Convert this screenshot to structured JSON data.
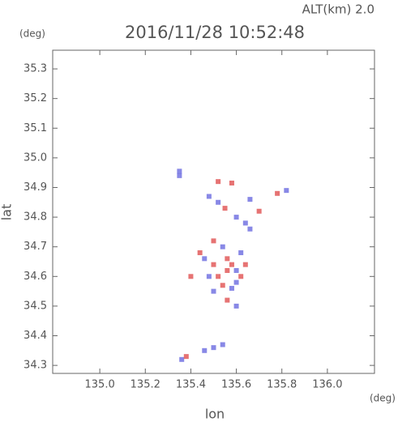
{
  "header": {
    "altitude": "ALT(km) 2.0",
    "y_unit": "(deg)",
    "x_unit": "(deg)"
  },
  "chart_data": {
    "type": "scatter",
    "title": "2016/11/28 10:52:48",
    "x_label": "lon",
    "y_label": "lat",
    "xlim": [
      134.793,
      136.207
    ],
    "ylim": [
      34.273,
      35.363
    ],
    "xticks": [
      {
        "value": 135,
        "label": "135.0"
      },
      135.2,
      135.4,
      135.6,
      135.8,
      {
        "value": 136,
        "label": "136.0"
      }
    ],
    "yticks": [
      35.3,
      35.2,
      35.1,
      {
        "value": 35,
        "label": "35.0"
      },
      34.9,
      34.8,
      34.7,
      34.6,
      34.5,
      34.4,
      34.3
    ],
    "x": [
      135.35,
      135.35,
      135.52,
      135.58,
      135.48,
      135.52,
      135.55,
      135.6,
      135.66,
      135.7,
      135.78,
      135.82,
      135.64,
      135.5,
      135.54,
      135.46,
      135.5,
      135.56,
      135.62,
      135.58,
      135.52,
      135.6,
      135.48,
      135.54,
      135.58,
      135.62,
      135.56,
      135.6,
      135.5,
      135.64,
      135.56,
      135.6,
      135.36,
      135.38,
      135.46,
      135.5,
      135.54,
      135.4,
      135.66,
      135.44
    ],
    "values": [
      34.955,
      34.94,
      34.92,
      34.915,
      34.87,
      34.85,
      34.83,
      34.8,
      34.86,
      34.82,
      34.88,
      34.89,
      34.78,
      34.72,
      34.7,
      34.66,
      34.64,
      34.66,
      34.68,
      34.64,
      34.6,
      34.62,
      34.6,
      34.57,
      34.56,
      34.6,
      34.52,
      34.5,
      34.55,
      34.64,
      34.62,
      34.58,
      34.32,
      34.33,
      34.35,
      34.36,
      34.37,
      34.6,
      34.76,
      34.68
    ],
    "colors": [
      "#6a6ae0",
      "#6a6ae0",
      "#e05050",
      "#e05050",
      "#6a6ae0",
      "#6a6ae0",
      "#e05050",
      "#6a6ae0",
      "#6a6ae0",
      "#e05050",
      "#e05050",
      "#6a6ae0",
      "#6a6ae0",
      "#e05050",
      "#6a6ae0",
      "#6a6ae0",
      "#e05050",
      "#e05050",
      "#6a6ae0",
      "#e05050",
      "#e05050",
      "#6a6ae0",
      "#6a6ae0",
      "#e05050",
      "#6a6ae0",
      "#e05050",
      "#e05050",
      "#6a6ae0",
      "#6a6ae0",
      "#e05050",
      "#e05050",
      "#6a6ae0",
      "#6a6ae0",
      "#e05050",
      "#6a6ae0",
      "#6a6ae0",
      "#6a6ae0",
      "#e05050",
      "#6a6ae0",
      "#e05050"
    ]
  }
}
